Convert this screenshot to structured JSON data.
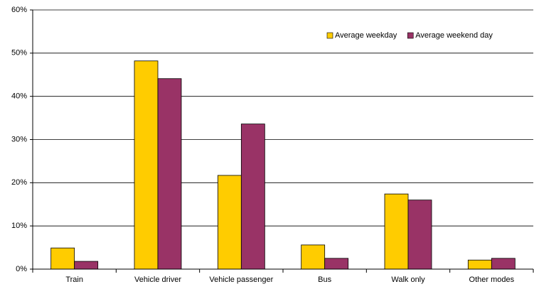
{
  "chart_data": {
    "type": "bar",
    "categories": [
      "Train",
      "Vehicle driver",
      "Vehicle passenger",
      "Bus",
      "Walk only",
      "Other modes"
    ],
    "series": [
      {
        "name": "Average weekday",
        "color": "#ffcc00",
        "values": [
          4.9,
          48.2,
          21.7,
          5.6,
          17.4,
          2.1
        ]
      },
      {
        "name": "Average weekend day",
        "color": "#993366",
        "values": [
          1.8,
          44.1,
          33.6,
          2.5,
          16.0,
          2.5
        ]
      }
    ],
    "ylim": [
      0,
      60
    ],
    "yticks": [
      {
        "value": 0,
        "label": "0%"
      },
      {
        "value": 10,
        "label": "10%"
      },
      {
        "value": 20,
        "label": "20%"
      },
      {
        "value": 30,
        "label": "30%"
      },
      {
        "value": 40,
        "label": "40%"
      },
      {
        "value": 50,
        "label": "50%"
      },
      {
        "value": 60,
        "label": "60%"
      }
    ],
    "grid": true,
    "legend": "top-right"
  }
}
